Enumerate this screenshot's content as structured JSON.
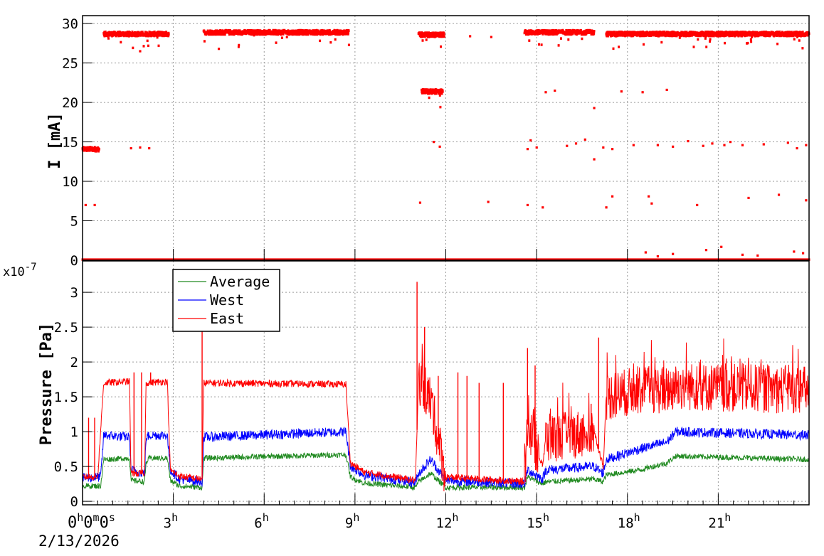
{
  "chart_data": [
    {
      "type": "scatter",
      "panel": "top",
      "ylabel": "I [mA]",
      "ylim": [
        0,
        31
      ],
      "yticks": [
        0,
        5,
        10,
        15,
        20,
        25,
        30
      ],
      "xlim_hours": [
        0,
        24
      ],
      "grid": true,
      "series": [
        {
          "color": "#ff0000",
          "segments": [
            {
              "x": [
                0,
                0.55
              ],
              "y": 14.1
            },
            {
              "x": [
                0.7,
                2.85
              ],
              "y": 28.7
            },
            {
              "x": [
                4.0,
                8.8
              ],
              "y": 28.9
            },
            {
              "x": [
                11.1,
                11.95
              ],
              "y": 28.6
            },
            {
              "x": [
                14.6,
                16.9
              ],
              "y": 28.9
            },
            {
              "x": [
                17.3,
                24.0
              ],
              "y": 28.7
            },
            {
              "x": [
                0,
                24.0
              ],
              "y": 0.1
            },
            {
              "x": [
                11.2,
                11.9
              ],
              "y": 21.4
            }
          ],
          "points": [
            [
              0.1,
              7.0
            ],
            [
              0.4,
              7.0
            ],
            [
              1.6,
              14.2
            ],
            [
              1.9,
              14.3
            ],
            [
              2.2,
              14.2
            ],
            [
              1.9,
              26.5
            ],
            [
              4.5,
              26.8
            ],
            [
              11.15,
              7.3
            ],
            [
              11.6,
              15.0
            ],
            [
              11.8,
              14.4
            ],
            [
              12.8,
              28.4
            ],
            [
              13.5,
              28.3
            ],
            [
              13.4,
              7.4
            ],
            [
              14.7,
              14.1
            ],
            [
              14.8,
              15.2
            ],
            [
              15.0,
              14.3
            ],
            [
              15.2,
              6.7
            ],
            [
              14.7,
              7.0
            ],
            [
              15.3,
              21.3
            ],
            [
              15.6,
              21.5
            ],
            [
              16.0,
              14.5
            ],
            [
              16.3,
              14.8
            ],
            [
              16.6,
              15.3
            ],
            [
              16.9,
              12.8
            ],
            [
              16.9,
              19.3
            ],
            [
              17.2,
              14.3
            ],
            [
              17.5,
              8.1
            ],
            [
              17.3,
              6.7
            ],
            [
              17.5,
              14.1
            ],
            [
              17.8,
              21.4
            ],
            [
              18.2,
              14.6
            ],
            [
              18.5,
              21.3
            ],
            [
              18.7,
              8.1
            ],
            [
              18.8,
              7.2
            ],
            [
              19.0,
              14.6
            ],
            [
              19.3,
              21.6
            ],
            [
              19.5,
              14.4
            ],
            [
              20.0,
              15.1
            ],
            [
              20.3,
              7.0
            ],
            [
              20.5,
              14.5
            ],
            [
              20.8,
              14.8
            ],
            [
              21.2,
              14.6
            ],
            [
              21.4,
              15.0
            ],
            [
              21.8,
              14.6
            ],
            [
              22.0,
              7.9
            ],
            [
              22.5,
              14.7
            ],
            [
              23.0,
              8.3
            ],
            [
              23.3,
              14.9
            ],
            [
              23.6,
              14.2
            ],
            [
              23.9,
              14.6
            ],
            [
              23.9,
              7.6
            ],
            [
              18.6,
              1.0
            ],
            [
              19.5,
              0.8
            ],
            [
              20.6,
              1.3
            ],
            [
              21.1,
              1.7
            ],
            [
              22.3,
              0.6
            ],
            [
              23.5,
              1.1
            ],
            [
              19.0,
              0.5
            ],
            [
              21.8,
              0.7
            ],
            [
              23.8,
              0.9
            ]
          ]
        }
      ]
    },
    {
      "type": "line",
      "panel": "bottom",
      "ylabel": "Pressure [Pa]",
      "y_multiplier_label": "x10",
      "y_multiplier_exponent": "-7",
      "ylim": [
        -0.05,
        3.45
      ],
      "yticks": [
        0,
        0.5,
        1,
        1.5,
        2,
        2.5,
        3
      ],
      "xlim_hours": [
        0,
        24
      ],
      "xtick_labels": [
        "0",
        "3",
        "6",
        "9",
        "12",
        "15",
        "18",
        "21"
      ],
      "xtick_first": "0h0m0s",
      "date": "2/13/2026",
      "grid": true,
      "legend": {
        "position": "top-left",
        "entries": [
          "Average",
          "West",
          "East"
        ]
      },
      "series": [
        {
          "name": "Average",
          "color": "#228b22",
          "amplitude": 0.04,
          "profile": [
            [
              0,
              0.22
            ],
            [
              0.6,
              0.22
            ],
            [
              0.7,
              0.6
            ],
            [
              1.55,
              0.62
            ],
            [
              1.6,
              0.3
            ],
            [
              2.05,
              0.28
            ],
            [
              2.1,
              0.55
            ],
            [
              2.2,
              0.62
            ],
            [
              2.8,
              0.62
            ],
            [
              2.9,
              0.3
            ],
            [
              3.2,
              0.22
            ],
            [
              3.95,
              0.2
            ],
            [
              4.0,
              0.62
            ],
            [
              8.7,
              0.67
            ],
            [
              8.85,
              0.35
            ],
            [
              9.3,
              0.26
            ],
            [
              11.0,
              0.2
            ],
            [
              11.1,
              0.28
            ],
            [
              11.5,
              0.4
            ],
            [
              12.0,
              0.2
            ],
            [
              14.6,
              0.2
            ],
            [
              14.7,
              0.35
            ],
            [
              15.2,
              0.25
            ],
            [
              15.3,
              0.28
            ],
            [
              16.9,
              0.32
            ],
            [
              17.2,
              0.28
            ],
            [
              17.3,
              0.38
            ],
            [
              18.4,
              0.45
            ],
            [
              19.3,
              0.55
            ],
            [
              19.6,
              0.65
            ],
            [
              24,
              0.6
            ]
          ]
        },
        {
          "name": "West",
          "color": "#0000ff",
          "amplitude": 0.07,
          "profile": [
            [
              0,
              0.33
            ],
            [
              0.6,
              0.35
            ],
            [
              0.7,
              0.95
            ],
            [
              1.55,
              0.92
            ],
            [
              1.6,
              0.45
            ],
            [
              2.05,
              0.4
            ],
            [
              2.1,
              0.9
            ],
            [
              2.2,
              0.95
            ],
            [
              2.8,
              0.95
            ],
            [
              2.9,
              0.45
            ],
            [
              3.2,
              0.32
            ],
            [
              3.95,
              0.28
            ],
            [
              4.0,
              0.92
            ],
            [
              8.7,
              1.0
            ],
            [
              8.85,
              0.5
            ],
            [
              9.3,
              0.38
            ],
            [
              11.0,
              0.27
            ],
            [
              11.1,
              0.4
            ],
            [
              11.5,
              0.6
            ],
            [
              12.0,
              0.3
            ],
            [
              14.6,
              0.25
            ],
            [
              14.7,
              0.45
            ],
            [
              15.2,
              0.32
            ],
            [
              15.3,
              0.45
            ],
            [
              16.9,
              0.5
            ],
            [
              17.2,
              0.4
            ],
            [
              17.3,
              0.6
            ],
            [
              18.4,
              0.75
            ],
            [
              19.3,
              0.85
            ],
            [
              19.6,
              1.0
            ],
            [
              24,
              0.95
            ]
          ]
        },
        {
          "name": "East",
          "color": "#ff0000",
          "amplitude": 0.05,
          "profile": [
            [
              0,
              0.35
            ],
            [
              0.5,
              0.35
            ],
            [
              0.7,
              1.7
            ],
            [
              1.55,
              1.72
            ],
            [
              1.6,
              0.4
            ],
            [
              2.05,
              0.4
            ],
            [
              2.1,
              1.7
            ],
            [
              2.8,
              1.72
            ],
            [
              2.9,
              0.45
            ],
            [
              3.2,
              0.36
            ],
            [
              3.95,
              0.32
            ],
            [
              4.0,
              1.7
            ],
            [
              8.7,
              1.68
            ],
            [
              8.85,
              0.55
            ],
            [
              9.3,
              0.42
            ],
            [
              11.0,
              0.3
            ],
            [
              11.1,
              1.75
            ],
            [
              11.5,
              1.45
            ],
            [
              12.0,
              0.35
            ],
            [
              14.6,
              0.28
            ],
            [
              14.7,
              1.1
            ],
            [
              15.2,
              0.5
            ],
            [
              15.3,
              0.9
            ],
            [
              16.9,
              1.0
            ],
            [
              17.2,
              0.5
            ],
            [
              17.3,
              1.5
            ],
            [
              18.4,
              1.6
            ],
            [
              19.3,
              1.6
            ],
            [
              19.6,
              1.65
            ],
            [
              24,
              1.6
            ]
          ],
          "high_variance_ranges": [
            [
              11.1,
              12.0
            ],
            [
              14.6,
              15.1
            ],
            [
              15.3,
              16.9
            ],
            [
              17.3,
              24.0
            ]
          ],
          "spikes": [
            [
              0.2,
              1.2
            ],
            [
              0.4,
              1.2
            ],
            [
              1.7,
              1.85
            ],
            [
              1.95,
              1.85
            ],
            [
              2.25,
              1.85
            ],
            [
              3.95,
              3.0
            ],
            [
              6.4,
              1.65
            ],
            [
              11.05,
              3.15
            ],
            [
              11.3,
              2.5
            ],
            [
              11.75,
              1.8
            ],
            [
              12.4,
              1.85
            ],
            [
              12.7,
              1.8
            ],
            [
              13.1,
              1.7
            ],
            [
              13.9,
              1.7
            ],
            [
              14.7,
              2.2
            ],
            [
              14.95,
              1.95
            ],
            [
              16.8,
              1.4
            ],
            [
              17.05,
              2.35
            ],
            [
              18.2,
              1.9
            ],
            [
              18.6,
              1.85
            ]
          ]
        }
      ]
    }
  ]
}
